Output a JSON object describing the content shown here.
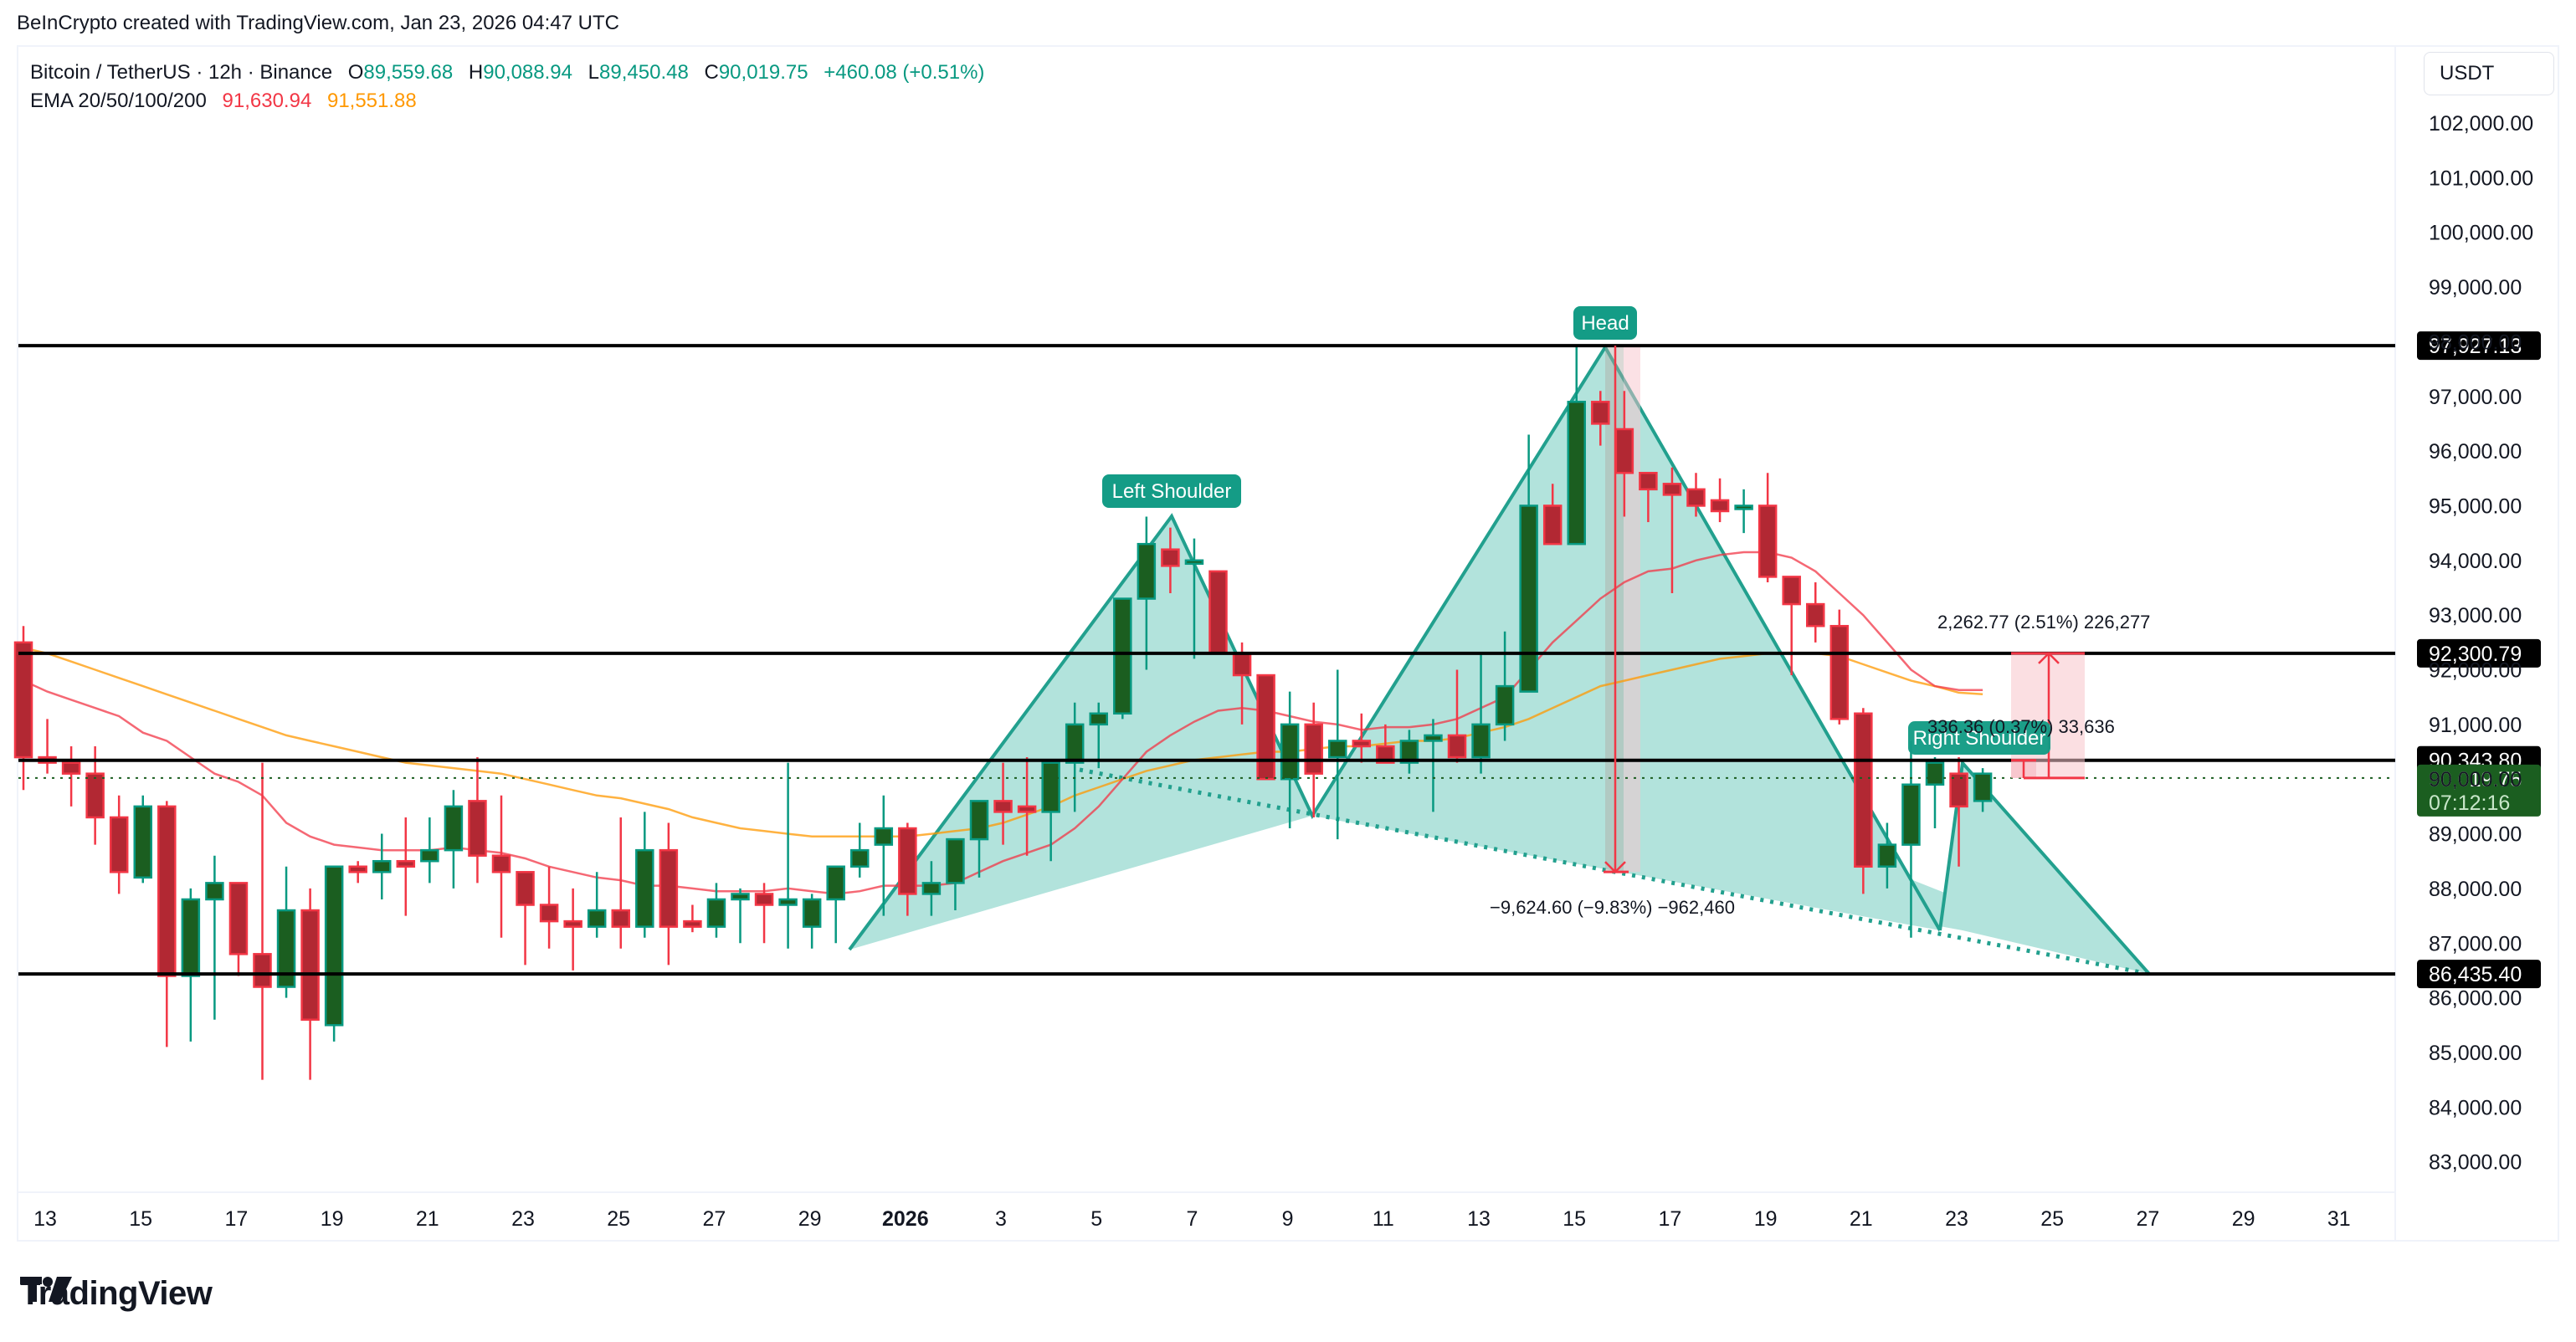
{
  "credit": "BeInCrypto created with TradingView.com, Jan 23, 2026 04:47 UTC",
  "legend": {
    "symbol": "Bitcoin / TetherUS · 12h · Binance",
    "open_label": "O",
    "open": "89,559.68",
    "high_label": "H",
    "high": "90,088.94",
    "low_label": "L",
    "low": "89,450.48",
    "close_label": "C",
    "close": "90,019.75",
    "change": "+460.08 (+0.51%)",
    "ema_label": "EMA 20/50/100/200",
    "ema20": "91,630.94",
    "ema50": "91,551.88"
  },
  "currency_button": "USDT",
  "logo_text": "TradingView",
  "colors": {
    "up_border": "#089981",
    "up_body": "#1b5e20",
    "down_border": "#f23645",
    "down_body": "#b22833",
    "ema20": "#f23645",
    "ema50": "#ff9800",
    "pattern_fill": "#b2e3dc",
    "pattern_line": "#22a08e",
    "label_bg": "#149c86",
    "level_line": "#000000",
    "last_price_bg": "#1b5e20"
  },
  "chart_data": {
    "type": "candlestick",
    "title": "Bitcoin / TetherUS · 12h · Binance",
    "timeframe": "12h",
    "xlabel": "",
    "ylabel": "USDT",
    "ylim": [
      82500,
      102600
    ],
    "y_ticks": [
      "102,000.00",
      "101,000.00",
      "100,000.00",
      "99,000.00",
      "98,000.00",
      "97,000.00",
      "96,000.00",
      "95,000.00",
      "94,000.00",
      "93,000.00",
      "92,000.00",
      "91,000.00",
      "90,000.00",
      "89,000.00",
      "88,000.00",
      "87,000.00",
      "86,000.00",
      "85,000.00",
      "84,000.00",
      "83,000.00"
    ],
    "y_tick_values": [
      102000,
      101000,
      100000,
      99000,
      98000,
      97000,
      96000,
      95000,
      94000,
      93000,
      92000,
      91000,
      90000,
      89000,
      88000,
      87000,
      86000,
      85000,
      84000,
      83000
    ],
    "x_ticks": [
      {
        "label": "13",
        "bold": false
      },
      {
        "label": "15",
        "bold": false
      },
      {
        "label": "17",
        "bold": false
      },
      {
        "label": "19",
        "bold": false
      },
      {
        "label": "21",
        "bold": false
      },
      {
        "label": "23",
        "bold": false
      },
      {
        "label": "25",
        "bold": false
      },
      {
        "label": "27",
        "bold": false
      },
      {
        "label": "29",
        "bold": false
      },
      {
        "label": "2026",
        "bold": true
      },
      {
        "label": "3",
        "bold": false
      },
      {
        "label": "5",
        "bold": false
      },
      {
        "label": "7",
        "bold": false
      },
      {
        "label": "9",
        "bold": false
      },
      {
        "label": "11",
        "bold": false
      },
      {
        "label": "13",
        "bold": false
      },
      {
        "label": "15",
        "bold": false
      },
      {
        "label": "17",
        "bold": false
      },
      {
        "label": "19",
        "bold": false
      },
      {
        "label": "21",
        "bold": false
      },
      {
        "label": "23",
        "bold": false
      },
      {
        "label": "25",
        "bold": false
      },
      {
        "label": "27",
        "bold": false
      },
      {
        "label": "29",
        "bold": false
      },
      {
        "label": "31",
        "bold": false
      }
    ],
    "candles_ohlc": [
      [
        92500,
        92800,
        89800,
        90400
      ],
      [
        90400,
        91100,
        90100,
        90300
      ],
      [
        90300,
        90600,
        89500,
        90100
      ],
      [
        90100,
        90600,
        88800,
        89300
      ],
      [
        89300,
        89700,
        87900,
        88300
      ],
      [
        88200,
        89700,
        88100,
        89500
      ],
      [
        89500,
        89600,
        85100,
        86400
      ],
      [
        86400,
        88000,
        85200,
        87800
      ],
      [
        87800,
        88600,
        85600,
        88100
      ],
      [
        88100,
        88100,
        86400,
        86800
      ],
      [
        86800,
        90300,
        84500,
        86200
      ],
      [
        86200,
        88400,
        86000,
        87600
      ],
      [
        87600,
        88000,
        84500,
        85600
      ],
      [
        85500,
        88100,
        85200,
        88400
      ],
      [
        88400,
        88500,
        88100,
        88300
      ],
      [
        88300,
        89000,
        87800,
        88500
      ],
      [
        88500,
        89300,
        87500,
        88400
      ],
      [
        88500,
        89300,
        88100,
        88700
      ],
      [
        88700,
        89800,
        88000,
        89500
      ],
      [
        89600,
        90400,
        88100,
        88600
      ],
      [
        88600,
        89700,
        87100,
        88300
      ],
      [
        88300,
        88300,
        86600,
        87700
      ],
      [
        87700,
        88400,
        86900,
        87400
      ],
      [
        87400,
        88000,
        86500,
        87300
      ],
      [
        87300,
        88300,
        87100,
        87600
      ],
      [
        87600,
        89300,
        86900,
        87300
      ],
      [
        87300,
        89400,
        87100,
        88700
      ],
      [
        88700,
        89200,
        86600,
        87300
      ],
      [
        87400,
        87700,
        87200,
        87300
      ],
      [
        87300,
        88100,
        87100,
        87800
      ],
      [
        87800,
        88000,
        87000,
        87900
      ],
      [
        87900,
        88100,
        87000,
        87700
      ],
      [
        87700,
        90300,
        86900,
        87800
      ],
      [
        87300,
        87900,
        86900,
        87800
      ],
      [
        87800,
        88200,
        87000,
        88400
      ],
      [
        88400,
        89200,
        88200,
        88700
      ],
      [
        88800,
        89700,
        87500,
        89100
      ],
      [
        89100,
        89200,
        87500,
        87900
      ],
      [
        87900,
        88500,
        87500,
        88100
      ],
      [
        88100,
        88900,
        87600,
        88900
      ],
      [
        88900,
        89600,
        88200,
        89600
      ],
      [
        89600,
        90300,
        88800,
        89400
      ],
      [
        89500,
        90400,
        88600,
        89400
      ],
      [
        89400,
        90300,
        88500,
        90300
      ],
      [
        90300,
        91400,
        89400,
        91000
      ],
      [
        91000,
        91400,
        90200,
        91200
      ],
      [
        91200,
        92800,
        91100,
        93300
      ],
      [
        93300,
        94800,
        92000,
        94300
      ],
      [
        94200,
        94600,
        93400,
        93900
      ],
      [
        94000,
        94400,
        92200,
        94000
      ],
      [
        93800,
        93800,
        92400,
        92300
      ],
      [
        92300,
        92500,
        91000,
        91900
      ],
      [
        91900,
        91700,
        90500,
        90000
      ],
      [
        90000,
        91600,
        89100,
        91000
      ],
      [
        91000,
        91400,
        89300,
        90100
      ],
      [
        90400,
        92000,
        88900,
        90700
      ],
      [
        90700,
        91200,
        90300,
        90600
      ],
      [
        90600,
        91000,
        90300,
        90300
      ],
      [
        90300,
        90900,
        90100,
        90700
      ],
      [
        90700,
        91100,
        89400,
        90800
      ],
      [
        90800,
        92000,
        90300,
        90400
      ],
      [
        90400,
        92300,
        90100,
        91000
      ],
      [
        91000,
        92700,
        90700,
        91700
      ],
      [
        91600,
        96300,
        92000,
        95000
      ],
      [
        95000,
        95400,
        94600,
        94300
      ],
      [
        94300,
        97900,
        94600,
        96900
      ],
      [
        96900,
        97100,
        96100,
        96500
      ],
      [
        96400,
        97100,
        94800,
        95600
      ],
      [
        95600,
        95200,
        94700,
        95300
      ],
      [
        95400,
        95700,
        93400,
        95200
      ],
      [
        95300,
        95600,
        94800,
        95000
      ],
      [
        95100,
        95500,
        94700,
        94900
      ],
      [
        95000,
        95300,
        94500,
        95000
      ],
      [
        95000,
        95600,
        93600,
        93700
      ],
      [
        93700,
        93600,
        91900,
        93200
      ],
      [
        93200,
        93600,
        92500,
        92800
      ],
      [
        92800,
        93100,
        91000,
        91100
      ],
      [
        91200,
        91300,
        87900,
        88400
      ],
      [
        88400,
        89200,
        88000,
        88800
      ],
      [
        88800,
        90700,
        87100,
        89900
      ],
      [
        89900,
        90400,
        89100,
        90300
      ],
      [
        90100,
        90400,
        88400,
        89500
      ],
      [
        89600,
        90200,
        89400,
        90100
      ]
    ],
    "ema20_series": [
      91800,
      91600,
      91450,
      91300,
      91150,
      90850,
      90700,
      90400,
      90100,
      89950,
      89700,
      89200,
      88950,
      88800,
      88750,
      88700,
      88700,
      88700,
      88750,
      88700,
      88650,
      88550,
      88400,
      88300,
      88200,
      88150,
      88050,
      88050,
      88000,
      87950,
      87950,
      87950,
      88000,
      87950,
      87900,
      87950,
      88050,
      88050,
      88050,
      88100,
      88300,
      88500,
      88650,
      88800,
      89100,
      89500,
      90000,
      90500,
      90800,
      91050,
      91250,
      91300,
      91250,
      91150,
      91050,
      91000,
      90900,
      90950,
      90950,
      91000,
      91100,
      91300,
      91500,
      92000,
      92500,
      92900,
      93300,
      93600,
      93800,
      93850,
      94000,
      94100,
      94150,
      94150,
      94050,
      93800,
      93400,
      93000,
      92500,
      92000,
      91700,
      91630,
      91630
    ],
    "ema50_series": [
      92400,
      92300,
      92150,
      92000,
      91850,
      91700,
      91550,
      91400,
      91250,
      91100,
      90950,
      90800,
      90700,
      90600,
      90500,
      90400,
      90300,
      90250,
      90200,
      90150,
      90100,
      90000,
      89900,
      89800,
      89700,
      89650,
      89550,
      89450,
      89300,
      89200,
      89100,
      89050,
      89000,
      88950,
      88950,
      88950,
      88950,
      88950,
      89000,
      89050,
      89100,
      89200,
      89350,
      89500,
      89700,
      89850,
      90000,
      90150,
      90250,
      90350,
      90400,
      90450,
      90500,
      90500,
      90550,
      90600,
      90600,
      90650,
      90700,
      90700,
      90750,
      90850,
      90950,
      91100,
      91300,
      91500,
      91700,
      91800,
      91900,
      92000,
      92100,
      92200,
      92250,
      92300,
      92300,
      92300,
      92250,
      92100,
      91950,
      91800,
      91700,
      91580,
      91551
    ]
  },
  "levels": [
    {
      "name": "resistance-head-level",
      "price": 97927.13,
      "label": "97,927.13"
    },
    {
      "name": "resistance-level",
      "price": 92300.79,
      "label": "92,300.79"
    },
    {
      "name": "neckline-level",
      "price": 90343.8,
      "label": "90,343.80"
    },
    {
      "name": "support-level",
      "price": 86435.4,
      "label": "86,435.40"
    }
  ],
  "last_price": {
    "price": 90019.75,
    "label": "90,019.75",
    "countdown": "07:12:16"
  },
  "pattern_labels": {
    "left_shoulder": "Left Shoulder",
    "head": "Head",
    "right_shoulder": "Right Shoulder"
  },
  "measurements": {
    "drop": "−9,624.60 (−9.83%) −962,460",
    "rise": "2,262.77 (2.51%) 226,277",
    "small": "336.36 (0.37%) 33,636"
  }
}
